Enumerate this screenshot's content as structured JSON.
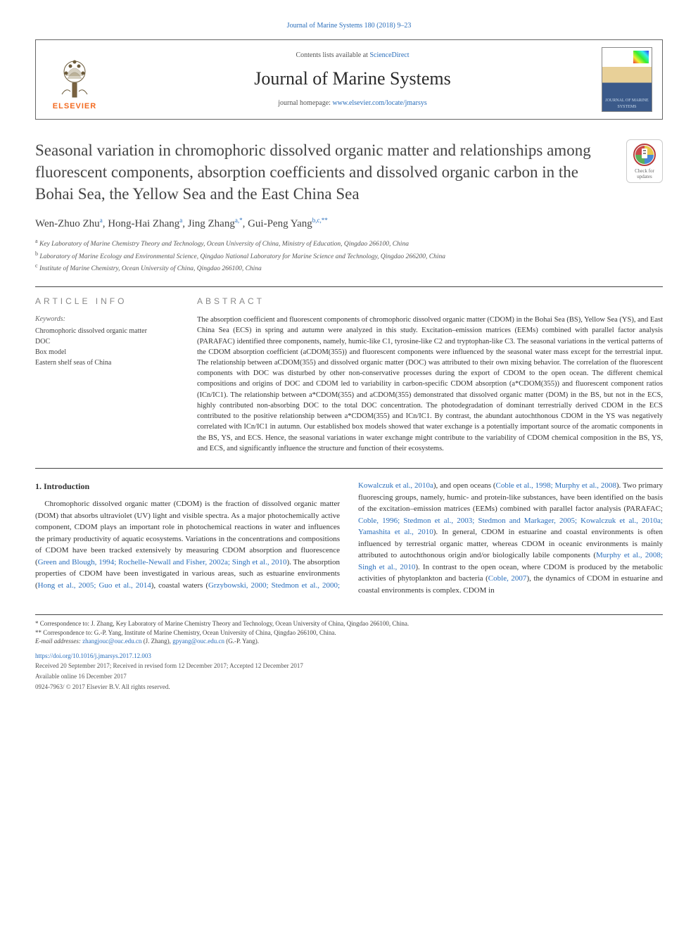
{
  "top_link": "Journal of Marine Systems 180 (2018) 9–23",
  "header": {
    "contents_prefix": "Contents lists available at ",
    "contents_link": "ScienceDirect",
    "journal_name": "Journal of Marine Systems",
    "homepage_prefix": "journal homepage: ",
    "homepage_link": "www.elsevier.com/locate/jmarsys",
    "elsevier": "ELSEVIER",
    "cover_label": "JOURNAL OF MARINE SYSTEMS"
  },
  "checkbadge": "Check for updates",
  "title": "Seasonal variation in chromophoric dissolved organic matter and relationships among fluorescent components, absorption coefficients and dissolved organic carbon in the Bohai Sea, the Yellow Sea and the East China Sea",
  "authors_html": "Wen-Zhuo Zhu<sup>a</sup>, Hong-Hai Zhang<sup>a</sup>, Jing Zhang<sup>a,*</sup>, Gui-Peng Yang<sup>b,c,**</sup>",
  "affiliations": [
    "a Key Laboratory of Marine Chemistry Theory and Technology, Ocean University of China, Ministry of Education, Qingdao 266100, China",
    "b Laboratory of Marine Ecology and Environmental Science, Qingdao National Laboratory for Marine Science and Technology, Qingdao 266200, China",
    "c Institute of Marine Chemistry, Ocean University of China, Qingdao 266100, China"
  ],
  "article_info_head": "ARTICLE INFO",
  "abstract_head": "ABSTRACT",
  "keywords_label": "Keywords:",
  "keywords": [
    "Chromophoric dissolved organic matter",
    "DOC",
    "Box model",
    "Eastern shelf seas of China"
  ],
  "abstract": "The absorption coefficient and fluorescent components of chromophoric dissolved organic matter (CDOM) in the Bohai Sea (BS), Yellow Sea (YS), and East China Sea (ECS) in spring and autumn were analyzed in this study. Excitation–emission matrices (EEMs) combined with parallel factor analysis (PARAFAC) identified three components, namely, humic-like C1, tyrosine-like C2 and tryptophan-like C3. The seasonal variations in the vertical patterns of the CDOM absorption coefficient (aCDOM(355)) and fluorescent components were influenced by the seasonal water mass except for the terrestrial input. The relationship between aCDOM(355) and dissolved organic matter (DOC) was attributed to their own mixing behavior. The correlation of the fluorescent components with DOC was disturbed by other non-conservative processes during the export of CDOM to the open ocean. The different chemical compositions and origins of DOC and CDOM led to variability in carbon-specific CDOM absorption (a*CDOM(355)) and fluorescent component ratios (ICn/IC1). The relationship between a*CDOM(355) and aCDOM(355) demonstrated that dissolved organic matter (DOM) in the BS, but not in the ECS, highly contributed non-absorbing DOC to the total DOC concentration. The photodegradation of dominant terrestrially derived CDOM in the ECS contributed to the positive relationship between a*CDOM(355) and ICn/IC1. By contrast, the abundant autochthonous CDOM in the YS was negatively correlated with ICn/IC1 in autumn. Our established box models showed that water exchange is a potentially important source of the aromatic components in the BS, YS, and ECS. Hence, the seasonal variations in water exchange might contribute to the variability of CDOM chemical composition in the BS, YS, and ECS, and significantly influence the structure and function of their ecosystems.",
  "intro_head": "1. Introduction",
  "intro_p1_pre": "Chromophoric dissolved organic matter (CDOM) is the fraction of dissolved organic matter (DOM) that absorbs ultraviolet (UV) light and visible spectra. As a major photochemically active component, CDOM plays an important role in photochemical reactions in water and influences the primary productivity of aquatic ecosystems. Variations in the concentrations and compositions of CDOM have been tracked extensively by measuring CDOM absorption and fluorescence (",
  "intro_p1_c1": "Green and Blough, 1994; Rochelle-Newall and Fisher, 2002a; Singh et al., 2010",
  "intro_p1_mid1": "). The absorption properties of CDOM have been investigated in various areas, such as estuarine environments (",
  "intro_p1_c2": "Hong et al., 2005; Guo et al., 2014",
  "intro_p1_mid2": "), coastal waters (",
  "intro_p1_c3": "Grzybowski, 2000; Stedmon et al., 2000;",
  "intro_p2_c1": "Kowalczuk et al., 2010a",
  "intro_p2_mid1": "), and open oceans (",
  "intro_p2_c2": "Coble et al., 1998; Murphy et al., 2008",
  "intro_p2_mid2": "). Two primary fluorescing groups, namely, humic- and protein-like substances, have been identified on the basis of the excitation–emission matrices (EEMs) combined with parallel factor analysis (PARAFAC; ",
  "intro_p2_c3": "Coble, 1996; Stedmon et al., 2003; Stedmon and Markager, 2005; Kowalczuk et al., 2010a; Yamashita et al., 2010",
  "intro_p2_mid3": "). In general, CDOM in estuarine and coastal environments is often influenced by terrestrial organic matter, whereas CDOM in oceanic environments is mainly attributed to autochthonous origin and/or biologically labile components (",
  "intro_p2_c4": "Murphy et al., 2008; Singh et al., 2010",
  "intro_p2_mid4": "). In contrast to the open ocean, where CDOM is produced by the metabolic activities of phytoplankton and bacteria (",
  "intro_p2_c5": "Coble, 2007",
  "intro_p2_mid5": "), the dynamics of CDOM in estuarine and coastal environments is complex. CDOM in",
  "footnotes": {
    "f1": "* Correspondence to: J. Zhang, Key Laboratory of Marine Chemistry Theory and Technology, Ocean University of China, Qingdao 266100, China.",
    "f2": "** Correspondence to: G.-P. Yang, Institute of Marine Chemistry, Ocean University of China, Qingdao 266100, China.",
    "email_label": "E-mail addresses: ",
    "email1": "zhangjouc@ouc.edu.cn",
    "email1_who": " (J. Zhang), ",
    "email2": "gpyang@ouc.edu.cn",
    "email2_who": " (G.-P. Yang)."
  },
  "doi": "https://doi.org/10.1016/j.jmarsys.2017.12.003",
  "received": "Received 20 September 2017; Received in revised form 12 December 2017; Accepted 12 December 2017",
  "available": "Available online 16 December 2017",
  "issn": "0924-7963/ © 2017 Elsevier B.V. All rights reserved.",
  "colors": {
    "link": "#2a6ebb",
    "elsevier_orange": "#f36b21",
    "text": "#333333",
    "muted": "#888888"
  }
}
